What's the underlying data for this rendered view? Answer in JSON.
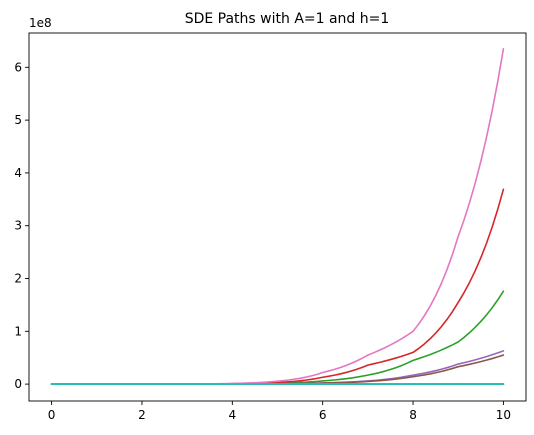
{
  "chart_data": {
    "type": "line",
    "title": "SDE Paths with A=1 and h=1",
    "xlabel": "",
    "ylabel": "",
    "y_offset_label": "1e8",
    "xlim": [
      -0.5,
      10.5
    ],
    "ylim": [
      -0.32,
      6.65
    ],
    "x_ticks": [
      0,
      2,
      4,
      6,
      8,
      10
    ],
    "x_tick_labels": [
      "0",
      "2",
      "4",
      "6",
      "8",
      "10"
    ],
    "y_ticks": [
      0,
      1,
      2,
      3,
      4,
      5,
      6
    ],
    "y_tick_labels": [
      "0",
      "1",
      "2",
      "3",
      "4",
      "5",
      "6"
    ],
    "grid": false,
    "legend": "none",
    "x": [
      0,
      1,
      2,
      3,
      4,
      5,
      6,
      7,
      8,
      9,
      10
    ],
    "series": [
      {
        "color": "#1f77b4",
        "values": [
          0,
          0,
          0,
          0,
          0,
          0,
          0,
          0,
          0,
          0,
          0
        ]
      },
      {
        "color": "#ff7f0e",
        "values": [
          0,
          0,
          0,
          0,
          0,
          0,
          0,
          0,
          0,
          0,
          0
        ]
      },
      {
        "color": "#2ca02c",
        "values": [
          0,
          1e-05,
          6e-05,
          0.0004,
          0.003,
          0.016,
          0.06,
          0.17,
          0.45,
          0.8,
          1.76
        ]
      },
      {
        "color": "#d62728",
        "values": [
          0,
          2e-05,
          0.0001,
          0.0008,
          0.006,
          0.03,
          0.13,
          0.36,
          0.6,
          1.55,
          3.69
        ]
      },
      {
        "color": "#9467bd",
        "values": [
          0,
          4e-06,
          2e-05,
          0.00015,
          0.001,
          0.006,
          0.022,
          0.06,
          0.17,
          0.38,
          0.63
        ]
      },
      {
        "color": "#8c564b",
        "values": [
          0,
          3e-06,
          2e-05,
          0.0001,
          0.0009,
          0.005,
          0.019,
          0.05,
          0.14,
          0.33,
          0.55
        ]
      },
      {
        "color": "#e377c2",
        "values": [
          0,
          3e-05,
          0.0002,
          0.0015,
          0.012,
          0.055,
          0.22,
          0.55,
          1.0,
          2.8,
          6.35
        ]
      },
      {
        "color": "#7f7f7f",
        "values": [
          0,
          0,
          0,
          0,
          0,
          0,
          0,
          0,
          0,
          0,
          0
        ]
      },
      {
        "color": "#bcbd22",
        "values": [
          0,
          0,
          0,
          0,
          0,
          0,
          0,
          0,
          0,
          0,
          0
        ]
      },
      {
        "color": "#17becf",
        "values": [
          0,
          0,
          0,
          0,
          0,
          0,
          0,
          0,
          0,
          0,
          0
        ]
      }
    ]
  }
}
